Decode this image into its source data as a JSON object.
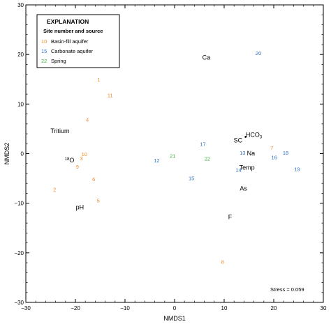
{
  "colors": {
    "basin_fill": "#f08a2c",
    "carbonate": "#2f72c4",
    "spring": "#3cb43c",
    "axis": "#000000"
  },
  "chart_data": {
    "type": "scatter",
    "xlabel": "NMDS1",
    "ylabel": "NMDS2",
    "xlim": [
      -30,
      30
    ],
    "ylim": [
      -30,
      30
    ],
    "x_ticks": [
      -30,
      -20,
      -10,
      0,
      10,
      20,
      30
    ],
    "y_ticks": [
      -30,
      -20,
      -10,
      0,
      10,
      20,
      30
    ],
    "x_tick_labels": [
      "−30",
      "−20",
      "−10",
      "0",
      "10",
      "20",
      "30"
    ],
    "y_tick_labels": [
      "−30",
      "−20",
      "−10",
      "0",
      "10",
      "20",
      "30"
    ],
    "legend": {
      "title": "EXPLANATION",
      "subtitle": "Site number and source",
      "placement": "top-left",
      "entries": [
        {
          "number": "10",
          "label": "Basin-fill aquifer",
          "group": "basin_fill"
        },
        {
          "number": "15",
          "label": "Carbonate aquifer",
          "group": "carbonate"
        },
        {
          "number": "22",
          "label": "Spring",
          "group": "spring"
        }
      ]
    },
    "sites": [
      {
        "label": "1",
        "x": -15.3,
        "y": 15.0,
        "group": "basin_fill"
      },
      {
        "label": "11",
        "x": -13.0,
        "y": 11.8,
        "group": "basin_fill"
      },
      {
        "label": "4",
        "x": -17.6,
        "y": 6.9,
        "group": "basin_fill"
      },
      {
        "label": "10",
        "x": -18.2,
        "y": -0.1,
        "group": "basin_fill"
      },
      {
        "label": "3",
        "x": -18.8,
        "y": -0.9,
        "group": "basin_fill"
      },
      {
        "label": "9",
        "x": -19.6,
        "y": -2.6,
        "group": "basin_fill"
      },
      {
        "label": "6",
        "x": -16.3,
        "y": -5.1,
        "group": "basin_fill"
      },
      {
        "label": "2",
        "x": -24.2,
        "y": -7.2,
        "group": "basin_fill"
      },
      {
        "label": "5",
        "x": -15.4,
        "y": -9.4,
        "group": "basin_fill"
      },
      {
        "label": "7",
        "x": 19.6,
        "y": 1.2,
        "group": "basin_fill"
      },
      {
        "label": "8",
        "x": 9.7,
        "y": -21.8,
        "group": "basin_fill"
      },
      {
        "label": "20",
        "x": 16.9,
        "y": 20.3,
        "group": "carbonate"
      },
      {
        "label": "17",
        "x": 5.7,
        "y": 2.0,
        "group": "carbonate"
      },
      {
        "label": "13",
        "x": 13.7,
        "y": 0.2,
        "group": "carbonate"
      },
      {
        "label": "18",
        "x": 22.4,
        "y": 0.2,
        "group": "carbonate"
      },
      {
        "label": "16",
        "x": 20.1,
        "y": -0.7,
        "group": "carbonate"
      },
      {
        "label": "12",
        "x": -3.6,
        "y": -1.3,
        "group": "carbonate"
      },
      {
        "label": "14",
        "x": 12.9,
        "y": -3.2,
        "group": "carbonate"
      },
      {
        "label": "19",
        "x": 24.7,
        "y": -3.1,
        "group": "carbonate"
      },
      {
        "label": "15",
        "x": 3.4,
        "y": -4.9,
        "group": "carbonate"
      },
      {
        "label": "21",
        "x": -0.4,
        "y": -0.4,
        "group": "spring"
      },
      {
        "label": "22",
        "x": 6.6,
        "y": -1.0,
        "group": "spring"
      }
    ],
    "variables": [
      {
        "label": "Ca",
        "x": 6.4,
        "y": 19.4
      },
      {
        "label": "Tritium",
        "x": -23.1,
        "y": 4.6
      },
      {
        "label": "SC",
        "x": 12.8,
        "y": 2.7
      },
      {
        "label": "HCO3",
        "x": 16.0,
        "y": 3.8,
        "subscript": "3"
      },
      {
        "label": "Na",
        "x": 15.4,
        "y": 0.1
      },
      {
        "label": "18O",
        "x": -21.2,
        "y": -1.3,
        "superscript": "18",
        "base": "O"
      },
      {
        "label": "Temp",
        "x": 14.6,
        "y": -2.8
      },
      {
        "label": "As",
        "x": 13.9,
        "y": -7.0
      },
      {
        "label": "pH",
        "x": -19.1,
        "y": -10.8
      },
      {
        "label": "F",
        "x": 11.2,
        "y": -12.8
      }
    ],
    "stress_text": "Stress = 0.059"
  }
}
